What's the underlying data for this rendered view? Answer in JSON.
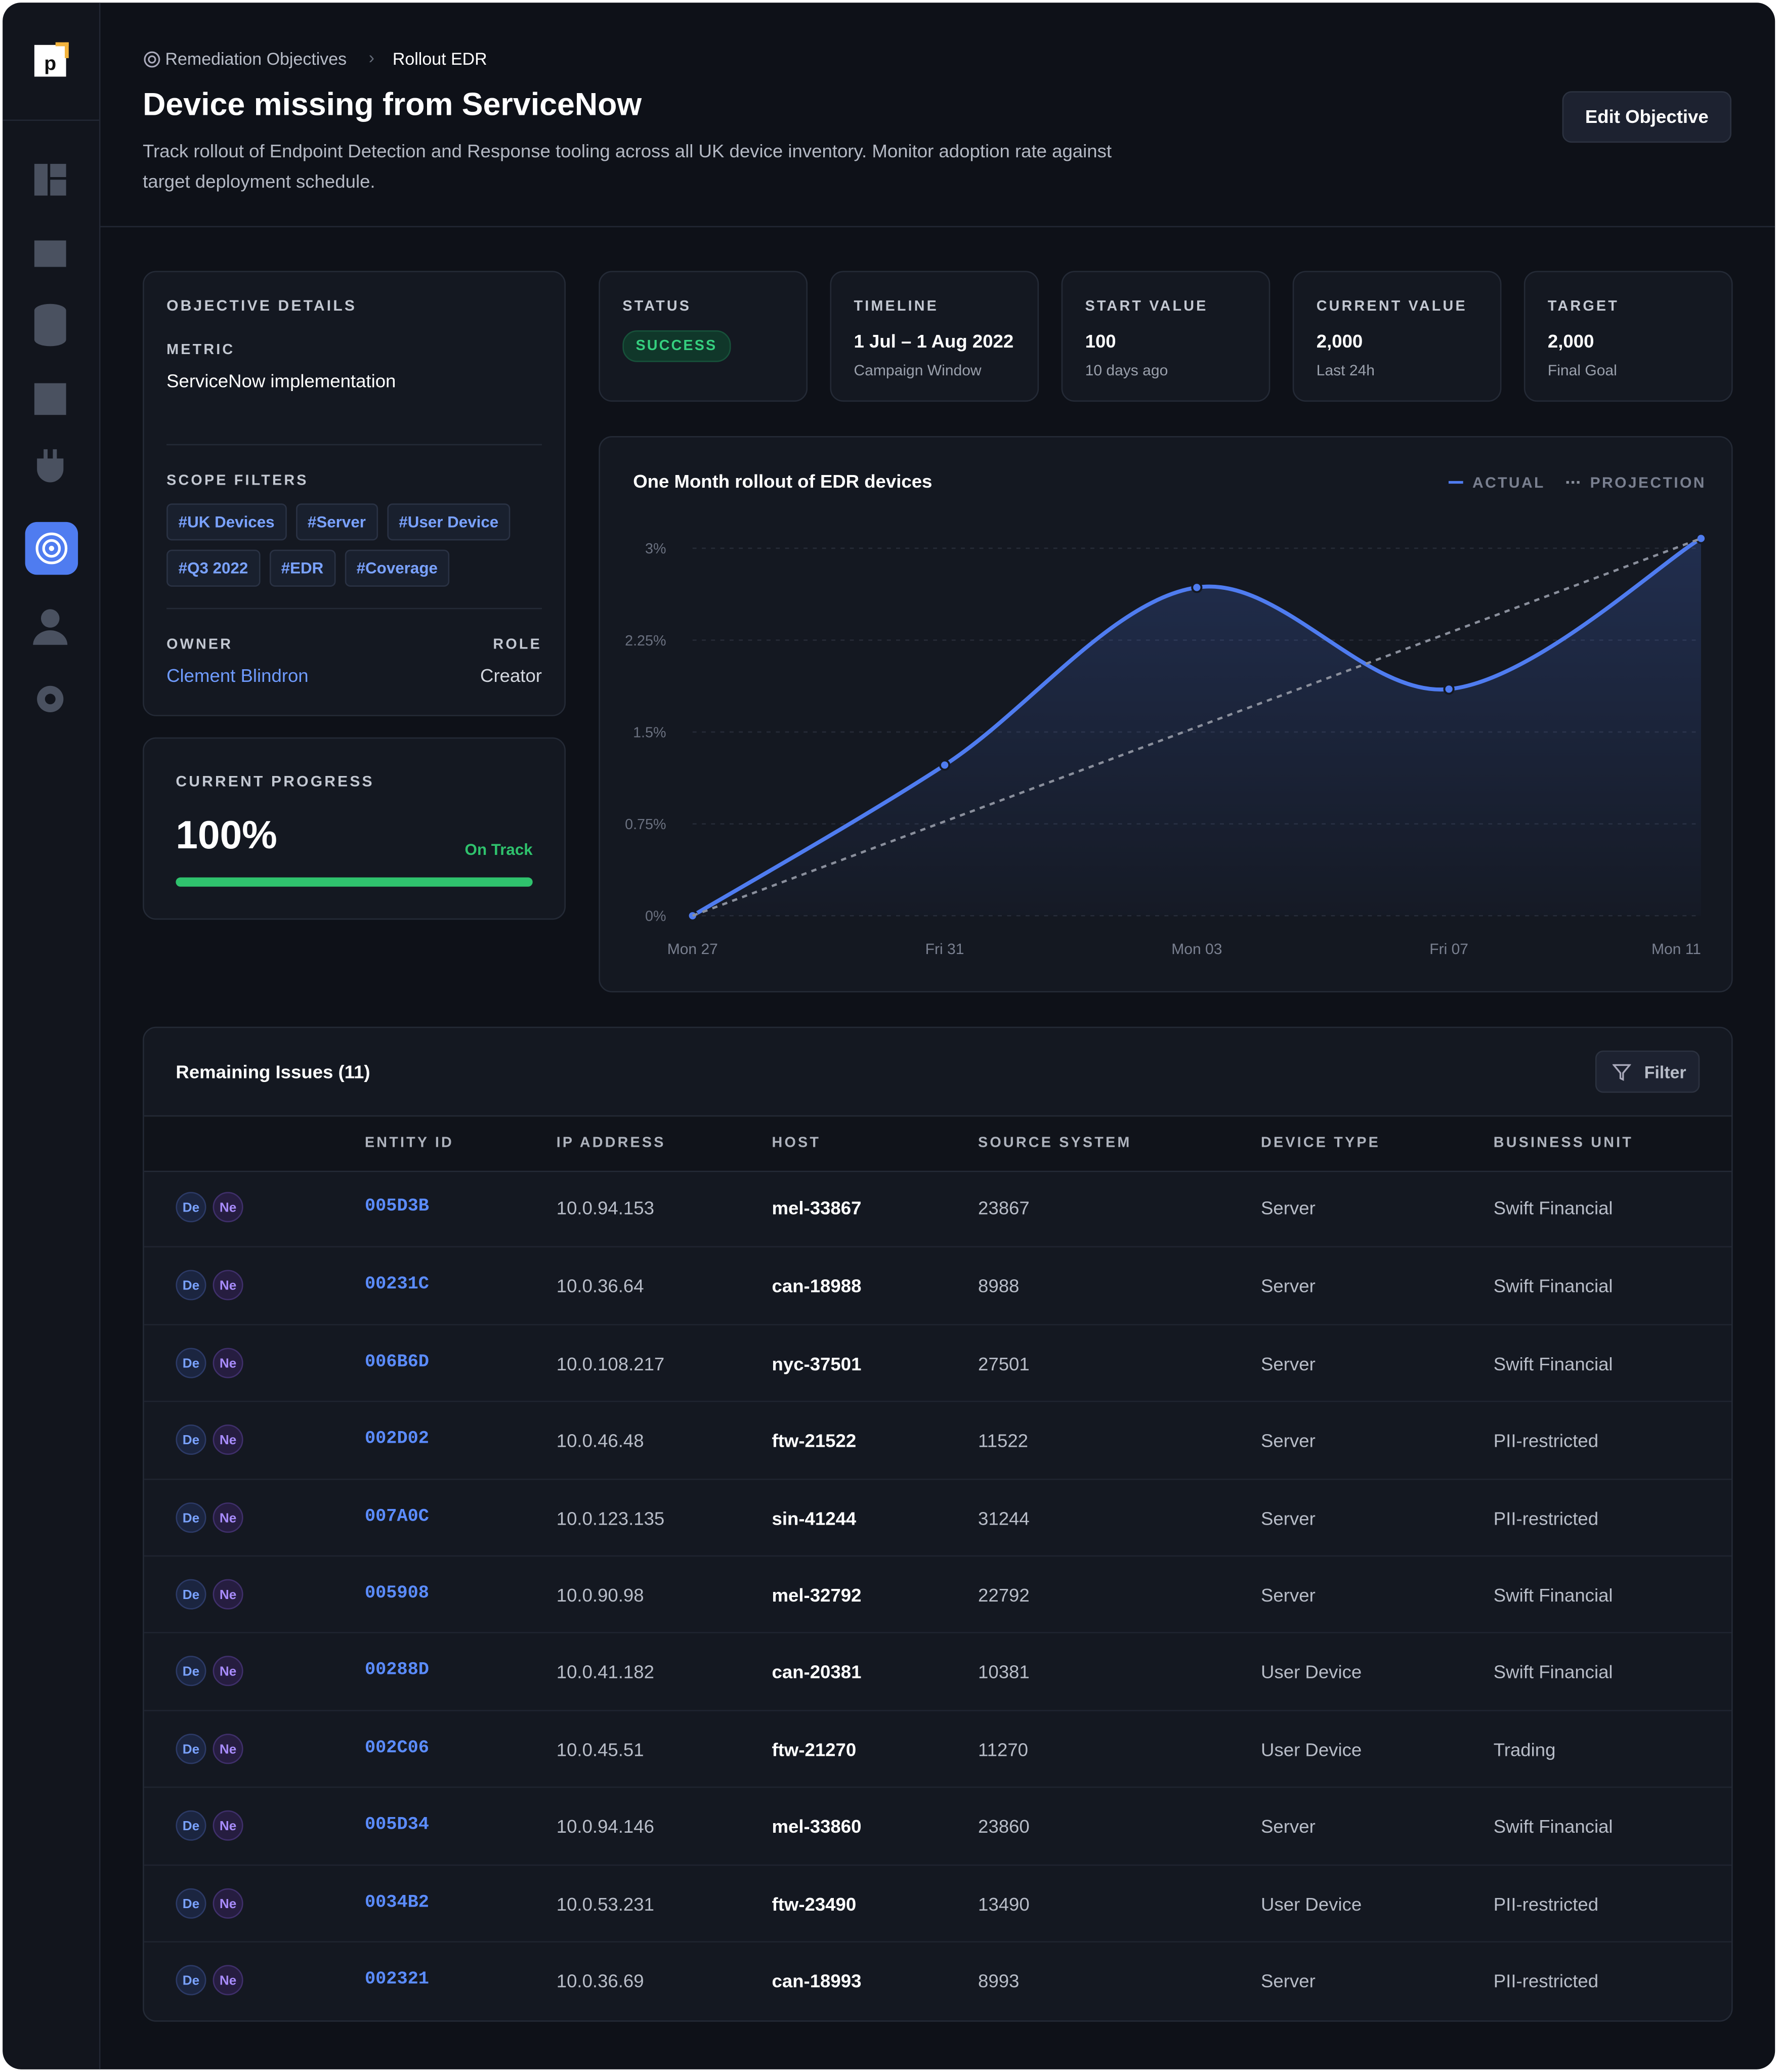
{
  "breadcrumb": [
    "Remediation Objectives",
    "Rollout EDR"
  ],
  "header": {
    "title": "Device missing from ServiceNow",
    "description": "Track rollout of Endpoint Detection and Response tooling across all UK device inventory. Monitor adoption rate against target deployment schedule.",
    "button": "Edit Objective"
  },
  "objective_details": {
    "title": "OBJECTIVE DETAILS",
    "metric_label": "METRIC",
    "metric": "ServiceNow implementation",
    "scope_label": "SCOPE FILTERS",
    "tags": [
      "#UK Devices",
      "#Server",
      "#User Device",
      "#Q3 2022",
      "#EDR",
      "#Coverage"
    ],
    "owner_label": "OWNER",
    "owner": "Clement Blindron",
    "role_label": "ROLE",
    "role": "Creator"
  },
  "progress": {
    "label": "CURRENT PROGRESS",
    "value": "100%",
    "status": "On Track"
  },
  "stats": [
    {
      "label": "STATUS",
      "badge": "SUCCESS"
    },
    {
      "label": "TIMELINE",
      "value": "1 Jul – 1 Aug 2022",
      "sub": "Campaign Window"
    },
    {
      "label": "START VALUE",
      "value": "100",
      "sub": "10 days ago"
    },
    {
      "label": "CURRENT VALUE",
      "value": "2,000",
      "sub": "Last 24h"
    },
    {
      "label": "TARGET",
      "value": "2,000",
      "sub": "Final Goal"
    }
  ],
  "chart_data": {
    "type": "line",
    "title": "One Month rollout of EDR devices",
    "categories": [
      "Mon 27",
      "Fri 31",
      "Mon 03",
      "Fri 07",
      "Mon 11"
    ],
    "series": [
      {
        "name": "ACTUAL",
        "color": "#4f7cf0",
        "values": [
          0,
          1.23,
          2.68,
          1.85,
          3.08
        ]
      },
      {
        "name": "PROJECTION",
        "color": "#8a8f9c",
        "values": [
          0,
          0.77,
          1.54,
          2.31,
          3.08
        ]
      }
    ],
    "ylim": [
      0,
      3.15
    ],
    "yticks": [
      {
        "value": 0,
        "label": "0%"
      },
      {
        "value": 0.75,
        "label": "0.75%"
      },
      {
        "value": 1.5,
        "label": "1.5%"
      },
      {
        "value": 2.25,
        "label": "2.25%"
      },
      {
        "value": 3,
        "label": "3%"
      }
    ],
    "grid": true,
    "legend": "top-right"
  },
  "table": {
    "title": "Remaining Issues (11)",
    "filter": "Filter",
    "avatars": [
      "De",
      "Ne"
    ],
    "columns": [
      "ENTITY ID",
      "IP ADDRESS",
      "HOST",
      "SOURCE SYSTEM",
      "DEVICE TYPE",
      "BUSINESS UNIT"
    ],
    "rows": [
      [
        "005D3B",
        "10.0.94.153",
        "mel-33867",
        "23867",
        "Server",
        "Swift Financial"
      ],
      [
        "00231C",
        "10.0.36.64",
        "can-18988",
        "8988",
        "Server",
        "Swift Financial"
      ],
      [
        "006B6D",
        "10.0.108.217",
        "nyc-37501",
        "27501",
        "Server",
        "Swift Financial"
      ],
      [
        "002D02",
        "10.0.46.48",
        "ftw-21522",
        "11522",
        "Server",
        "PII-restricted"
      ],
      [
        "007A0C",
        "10.0.123.135",
        "sin-41244",
        "31244",
        "Server",
        "PII-restricted"
      ],
      [
        "005908",
        "10.0.90.98",
        "mel-32792",
        "22792",
        "Server",
        "Swift Financial"
      ],
      [
        "00288D",
        "10.0.41.182",
        "can-20381",
        "10381",
        "User Device",
        "Swift Financial"
      ],
      [
        "002C06",
        "10.0.45.51",
        "ftw-21270",
        "11270",
        "User Device",
        "Trading"
      ],
      [
        "005D34",
        "10.0.94.146",
        "mel-33860",
        "23860",
        "Server",
        "Swift Financial"
      ],
      [
        "0034B2",
        "10.0.53.231",
        "ftw-23490",
        "13490",
        "User Device",
        "PII-restricted"
      ],
      [
        "002321",
        "10.0.36.69",
        "can-18993",
        "8993",
        "Server",
        "PII-restricted"
      ]
    ]
  }
}
